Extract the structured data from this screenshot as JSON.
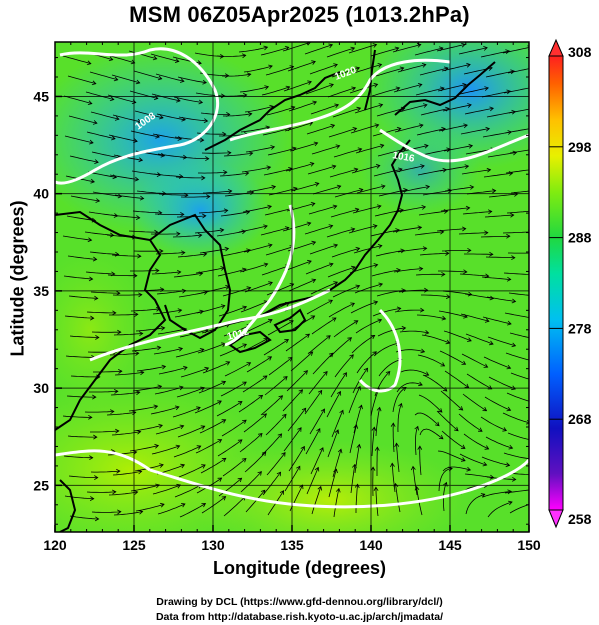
{
  "title": "MSM 06Z05Apr2025 (1013.2hPa)",
  "xlabel": "Longitude (degrees)",
  "ylabel": "Latitude  (degrees)",
  "credits": {
    "line1": "Drawing by DCL (https://www.gfd-dennou.org/library/dcl/)",
    "line2": "Data from http://database.rish.kyoto-u.ac.jp/arch/jmadata/"
  },
  "map": {
    "lon_range": [
      120,
      150
    ],
    "lat_range": [
      22.6,
      47.8
    ],
    "x_ticks": [
      "120",
      "125",
      "130",
      "135",
      "140",
      "145",
      "150"
    ],
    "y_ticks": [
      "25",
      "30",
      "35",
      "40",
      "45"
    ],
    "isobar_labels": [
      "1008",
      "1012",
      "1016",
      "1020"
    ]
  },
  "colorbar": {
    "min": 258,
    "max": 308,
    "ticks": [
      "308",
      "298",
      "288",
      "278",
      "268",
      "258"
    ],
    "colors": [
      "#ff00ff",
      "#2010a0",
      "#0044ff",
      "#00b0ff",
      "#00e0c0",
      "#00d060",
      "#30dd20",
      "#a8f000",
      "#f0f000",
      "#ffb000",
      "#ff5000",
      "#ff2020"
    ]
  }
}
